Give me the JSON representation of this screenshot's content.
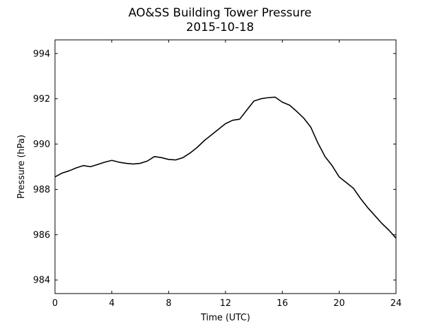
{
  "chart_data": {
    "type": "line",
    "title": "AO&SS Building Tower Pressure",
    "subtitle": "2015-10-18",
    "xlabel": "Time (UTC)",
    "ylabel": "Pressure (hPa)",
    "xlim": [
      0,
      24
    ],
    "ylim": [
      983.4,
      994.6
    ],
    "x_ticks": [
      0,
      4,
      8,
      12,
      16,
      20,
      24
    ],
    "y_ticks": [
      984,
      986,
      988,
      990,
      992,
      994
    ],
    "grid": false,
    "line_color": "#000000",
    "series": [
      {
        "x": [
          0,
          0.5,
          1,
          1.5,
          2,
          2.5,
          3,
          3.5,
          4,
          4.5,
          5,
          5.5,
          6,
          6.5,
          7,
          7.5,
          8,
          8.5,
          9,
          9.5,
          10,
          10.5,
          11,
          11.5,
          12,
          12.5,
          13,
          13.5,
          14,
          14.5,
          15,
          15.5,
          16,
          16.5,
          17,
          17.5,
          18,
          18.5,
          19,
          19.5,
          20,
          20.5,
          21,
          21.5,
          22,
          22.5,
          23,
          23.5,
          24
        ],
        "values": [
          988.55,
          988.72,
          988.82,
          988.95,
          989.05,
          989.0,
          989.1,
          989.2,
          989.28,
          989.2,
          989.15,
          989.12,
          989.15,
          989.25,
          989.45,
          989.4,
          989.32,
          989.3,
          989.4,
          989.6,
          989.85,
          990.15,
          990.4,
          990.65,
          990.9,
          991.05,
          991.1,
          991.5,
          991.9,
          992.0,
          992.05,
          992.07,
          991.85,
          991.72,
          991.45,
          991.15,
          990.75,
          990.05,
          989.45,
          989.05,
          988.55,
          988.3,
          988.05,
          987.6,
          987.2,
          986.85,
          986.5,
          986.2,
          985.85
        ]
      }
    ]
  }
}
